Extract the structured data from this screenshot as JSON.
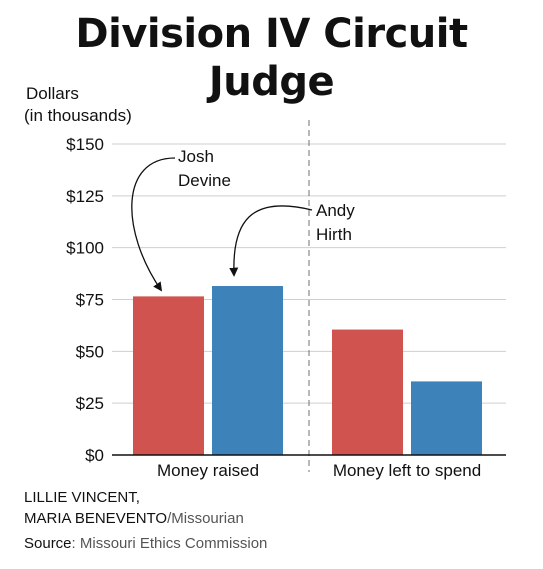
{
  "chart_data": {
    "type": "bar",
    "title_lines": [
      "Division IV Circuit",
      "Judge"
    ],
    "ylabel_lines": [
      "Dollars",
      "(in thousands)"
    ],
    "categories": [
      "Money raised",
      "Money left to spend"
    ],
    "series": [
      {
        "name": "Josh Devine",
        "values": [
          76.5,
          60.5
        ],
        "color": "#d0534f"
      },
      {
        "name": "Andy Hirth",
        "values": [
          81.5,
          35.5
        ],
        "color": "#3e82ba"
      }
    ],
    "yticks": [
      "$0",
      "$25",
      "$50",
      "$75",
      "$100",
      "$125",
      "$150"
    ],
    "ytick_values": [
      0,
      25,
      50,
      75,
      100,
      125,
      150
    ],
    "ylim": [
      0,
      150
    ],
    "annotations": [
      {
        "lines": [
          "Josh",
          "Devine"
        ],
        "series": 0
      },
      {
        "lines": [
          "Andy",
          "Hirth"
        ],
        "series": 1
      }
    ],
    "grid": true
  },
  "credit": {
    "line1": "LILLIE VINCENT,",
    "line2_names": "MARIA BENEVENTO",
    "line2_org": "/Missourian"
  },
  "source": {
    "label": "Source",
    "text": ": Missouri Ethics Commission"
  }
}
